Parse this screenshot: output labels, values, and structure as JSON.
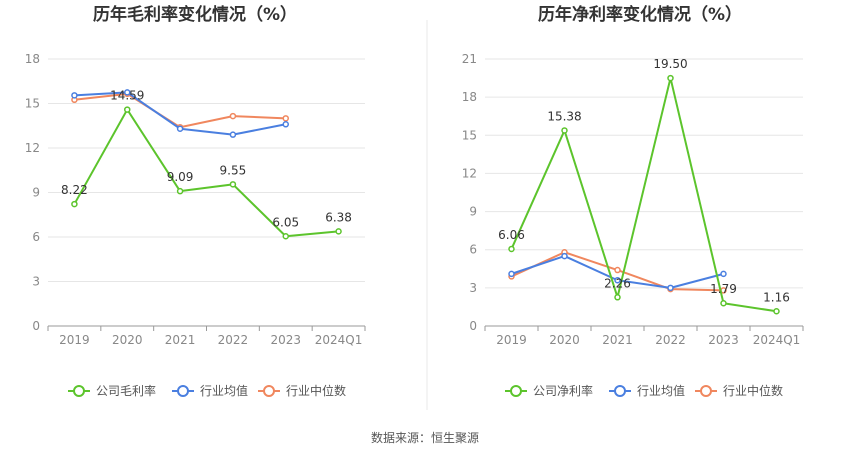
{
  "chart_data": [
    {
      "type": "line",
      "title": "历年毛利率变化情况（%）",
      "categories": [
        "2019",
        "2020",
        "2021",
        "2022",
        "2023",
        "2024Q1"
      ],
      "ylim": [
        0,
        18
      ],
      "yticks": [
        "0",
        "3",
        "6",
        "9",
        "12",
        "15",
        "18"
      ],
      "grid": true,
      "legend_position": "bottom",
      "series": [
        {
          "name": "公司毛利率",
          "color": "#5cc42c",
          "values": [
            8.22,
            14.59,
            9.09,
            9.55,
            6.05,
            6.38
          ],
          "labels": [
            "8.22",
            "14.59",
            "9.09",
            "9.55",
            "6.05",
            "6.38"
          ]
        },
        {
          "name": "行业均值",
          "color": "#4a7fe0",
          "values": [
            15.55,
            15.75,
            13.3,
            12.9,
            13.6,
            null
          ]
        },
        {
          "name": "行业中位数",
          "color": "#f0875e",
          "values": [
            15.25,
            15.65,
            13.4,
            14.15,
            14.0,
            null
          ]
        }
      ]
    },
    {
      "type": "line",
      "title": "历年净利率变化情况（%）",
      "categories": [
        "2019",
        "2020",
        "2021",
        "2022",
        "2023",
        "2024Q1"
      ],
      "ylim": [
        0,
        21
      ],
      "yticks": [
        "0",
        "3",
        "6",
        "9",
        "12",
        "15",
        "18",
        "21"
      ],
      "grid": true,
      "legend_position": "bottom",
      "series": [
        {
          "name": "公司净利率",
          "color": "#5cc42c",
          "values": [
            6.06,
            15.38,
            2.26,
            19.5,
            1.79,
            1.16
          ],
          "labels": [
            "6.06",
            "15.38",
            "2.26",
            "19.50",
            "1.79",
            "1.16"
          ]
        },
        {
          "name": "行业均值",
          "color": "#4a7fe0",
          "values": [
            4.1,
            5.5,
            3.6,
            3.0,
            4.1,
            null
          ]
        },
        {
          "name": "行业中位数",
          "color": "#f0875e",
          "values": [
            3.9,
            5.8,
            4.4,
            2.9,
            2.8,
            null
          ]
        }
      ]
    }
  ],
  "source": "数据来源：恒生聚源"
}
